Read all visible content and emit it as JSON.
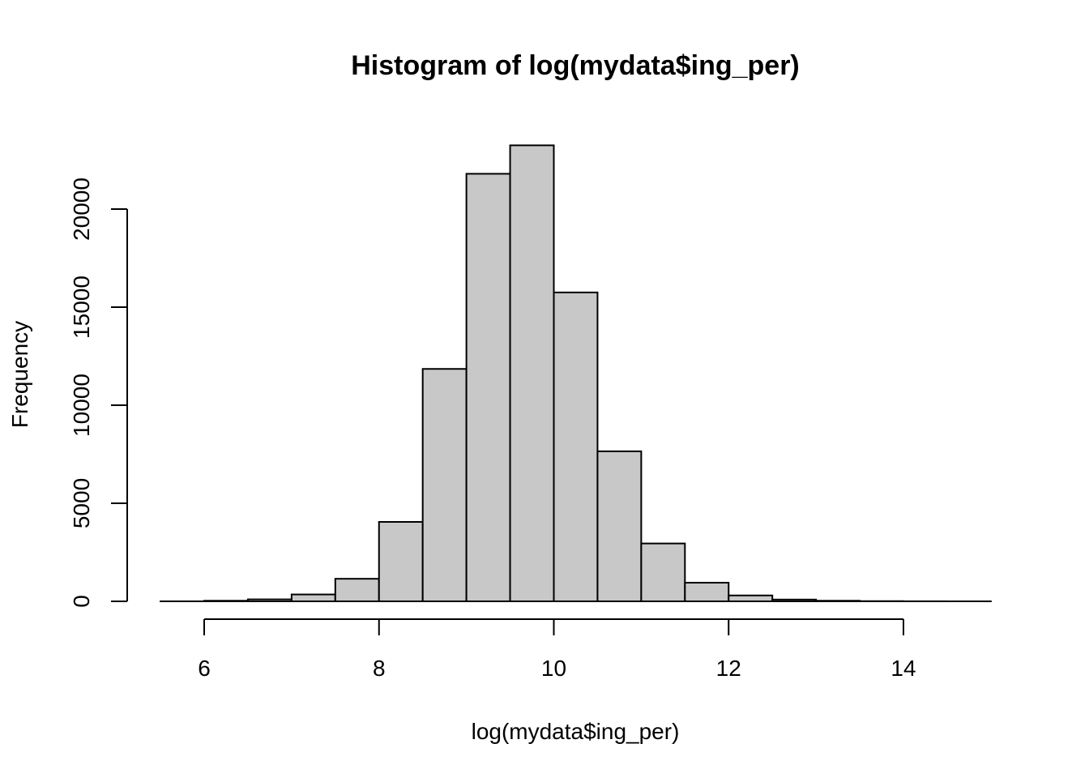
{
  "chart_data": {
    "type": "bar",
    "title": "Histogram of log(mydata$ing_per)",
    "xlabel": "log(mydata$ing_per)",
    "ylabel": "Frequency",
    "bin_edges": [
      5.5,
      6.0,
      6.5,
      7.0,
      7.5,
      8.0,
      8.5,
      9.0,
      9.5,
      10.0,
      10.5,
      11.0,
      11.5,
      12.0,
      12.5,
      13.0,
      13.5,
      14.0,
      14.5,
      15.0
    ],
    "values": [
      2,
      30,
      100,
      350,
      1150,
      4050,
      11850,
      21800,
      23250,
      15750,
      7650,
      2950,
      950,
      300,
      90,
      30,
      10,
      3,
      1
    ],
    "xlim": [
      5.5,
      15.0
    ],
    "ylim": [
      0,
      23250
    ],
    "x_ticks": [
      6,
      8,
      10,
      12,
      14
    ],
    "y_ticks": [
      0,
      5000,
      10000,
      15000,
      20000
    ],
    "x_tick_labels": [
      "6",
      "8",
      "10",
      "12",
      "14"
    ],
    "y_tick_labels": [
      "0",
      "5000",
      "10000",
      "15000",
      "20000"
    ],
    "bar_color": "#c8c8c8",
    "edge_color": "#000000",
    "grid": false,
    "legend": "none"
  }
}
